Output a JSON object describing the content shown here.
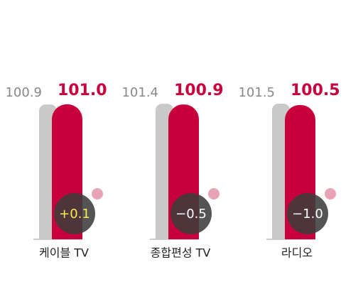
{
  "chart_data": {
    "type": "bar",
    "categories": [
      "케이블 TV",
      "종합편성 TV",
      "라디오"
    ],
    "series": [
      {
        "color": "#c9c9c9",
        "values": [
          100.9,
          101.4,
          101.5
        ],
        "value_labels": [
          "100.9",
          "101.4",
          "101.5"
        ]
      },
      {
        "color": "#c8003c",
        "values": [
          101.0,
          100.9,
          100.5
        ],
        "value_labels": [
          "101.0",
          "100.9",
          "100.5"
        ]
      }
    ],
    "changes": {
      "values": [
        0.1,
        -0.5,
        -1.0
      ],
      "value_labels": [
        "+0.1",
        "−0.5",
        "−1.0"
      ]
    },
    "ylim": [
      0,
      102
    ]
  }
}
